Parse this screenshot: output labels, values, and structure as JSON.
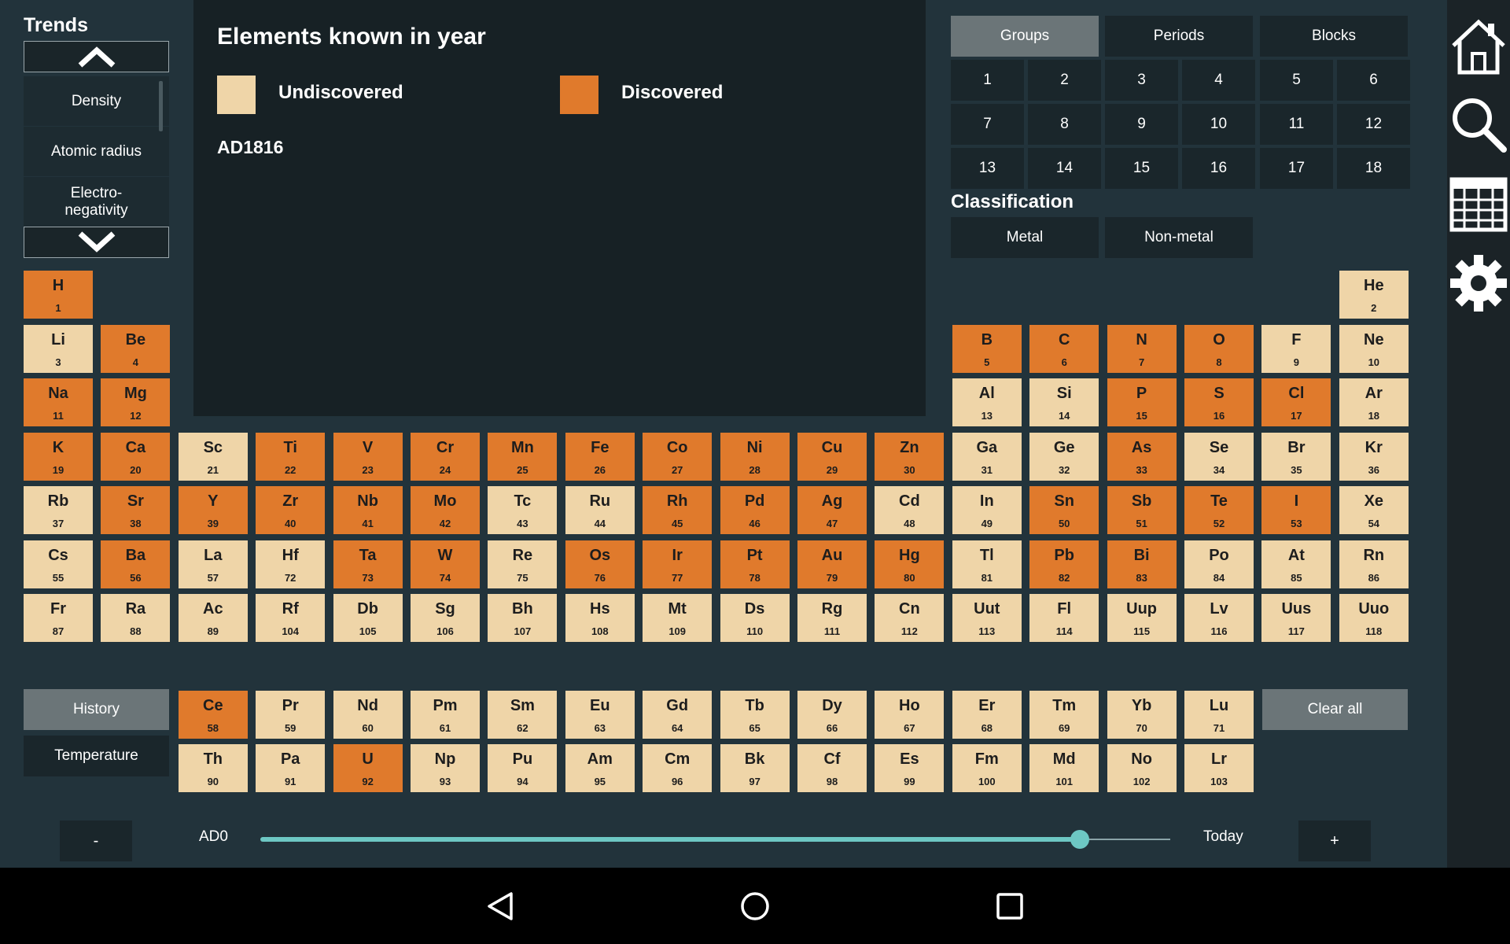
{
  "trends": {
    "title": "Trends",
    "items": [
      "Density",
      "Atomic radius",
      "Electro-\nnegativity"
    ]
  },
  "info": {
    "title": "Elements known in year",
    "legend_undiscovered": "Undiscovered",
    "legend_discovered": "Discovered",
    "year": "AD1816"
  },
  "tabs": [
    "Groups",
    "Periods",
    "Blocks"
  ],
  "groups": [
    "1",
    "2",
    "3",
    "4",
    "5",
    "6",
    "7",
    "8",
    "9",
    "10",
    "11",
    "12",
    "13",
    "14",
    "15",
    "16",
    "17",
    "18"
  ],
  "classification": {
    "title": "Classification",
    "metal": "Metal",
    "nonmetal": "Non-metal"
  },
  "modes": {
    "history": "History",
    "temperature": "Temperature"
  },
  "clear_all": "Clear all",
  "slider": {
    "minus": "-",
    "plus": "+",
    "start": "AD0",
    "end": "Today",
    "value_fraction": 0.88
  },
  "colors": {
    "undiscovered": "#efd5a8",
    "discovered": "#e07a2c",
    "accent": "#6dc7c3"
  },
  "elements": [
    {
      "s": "H",
      "n": 1,
      "r": 0,
      "c": 0,
      "d": 1
    },
    {
      "s": "He",
      "n": 2,
      "r": 0,
      "c": 17,
      "d": 0
    },
    {
      "s": "Li",
      "n": 3,
      "r": 1,
      "c": 0,
      "d": 0
    },
    {
      "s": "Be",
      "n": 4,
      "r": 1,
      "c": 1,
      "d": 1
    },
    {
      "s": "B",
      "n": 5,
      "r": 1,
      "c": 12,
      "d": 1
    },
    {
      "s": "C",
      "n": 6,
      "r": 1,
      "c": 13,
      "d": 1
    },
    {
      "s": "N",
      "n": 7,
      "r": 1,
      "c": 14,
      "d": 1
    },
    {
      "s": "O",
      "n": 8,
      "r": 1,
      "c": 15,
      "d": 1
    },
    {
      "s": "F",
      "n": 9,
      "r": 1,
      "c": 16,
      "d": 0
    },
    {
      "s": "Ne",
      "n": 10,
      "r": 1,
      "c": 17,
      "d": 0
    },
    {
      "s": "Na",
      "n": 11,
      "r": 2,
      "c": 0,
      "d": 1
    },
    {
      "s": "Mg",
      "n": 12,
      "r": 2,
      "c": 1,
      "d": 1
    },
    {
      "s": "Al",
      "n": 13,
      "r": 2,
      "c": 12,
      "d": 0
    },
    {
      "s": "Si",
      "n": 14,
      "r": 2,
      "c": 13,
      "d": 0
    },
    {
      "s": "P",
      "n": 15,
      "r": 2,
      "c": 14,
      "d": 1
    },
    {
      "s": "S",
      "n": 16,
      "r": 2,
      "c": 15,
      "d": 1
    },
    {
      "s": "Cl",
      "n": 17,
      "r": 2,
      "c": 16,
      "d": 1
    },
    {
      "s": "Ar",
      "n": 18,
      "r": 2,
      "c": 17,
      "d": 0
    },
    {
      "s": "K",
      "n": 19,
      "r": 3,
      "c": 0,
      "d": 1
    },
    {
      "s": "Ca",
      "n": 20,
      "r": 3,
      "c": 1,
      "d": 1
    },
    {
      "s": "Sc",
      "n": 21,
      "r": 3,
      "c": 2,
      "d": 0
    },
    {
      "s": "Ti",
      "n": 22,
      "r": 3,
      "c": 3,
      "d": 1
    },
    {
      "s": "V",
      "n": 23,
      "r": 3,
      "c": 4,
      "d": 1
    },
    {
      "s": "Cr",
      "n": 24,
      "r": 3,
      "c": 5,
      "d": 1
    },
    {
      "s": "Mn",
      "n": 25,
      "r": 3,
      "c": 6,
      "d": 1
    },
    {
      "s": "Fe",
      "n": 26,
      "r": 3,
      "c": 7,
      "d": 1
    },
    {
      "s": "Co",
      "n": 27,
      "r": 3,
      "c": 8,
      "d": 1
    },
    {
      "s": "Ni",
      "n": 28,
      "r": 3,
      "c": 9,
      "d": 1
    },
    {
      "s": "Cu",
      "n": 29,
      "r": 3,
      "c": 10,
      "d": 1
    },
    {
      "s": "Zn",
      "n": 30,
      "r": 3,
      "c": 11,
      "d": 1
    },
    {
      "s": "Ga",
      "n": 31,
      "r": 3,
      "c": 12,
      "d": 0
    },
    {
      "s": "Ge",
      "n": 32,
      "r": 3,
      "c": 13,
      "d": 0
    },
    {
      "s": "As",
      "n": 33,
      "r": 3,
      "c": 14,
      "d": 1
    },
    {
      "s": "Se",
      "n": 34,
      "r": 3,
      "c": 15,
      "d": 0
    },
    {
      "s": "Br",
      "n": 35,
      "r": 3,
      "c": 16,
      "d": 0
    },
    {
      "s": "Kr",
      "n": 36,
      "r": 3,
      "c": 17,
      "d": 0
    },
    {
      "s": "Rb",
      "n": 37,
      "r": 4,
      "c": 0,
      "d": 0
    },
    {
      "s": "Sr",
      "n": 38,
      "r": 4,
      "c": 1,
      "d": 1
    },
    {
      "s": "Y",
      "n": 39,
      "r": 4,
      "c": 2,
      "d": 1
    },
    {
      "s": "Zr",
      "n": 40,
      "r": 4,
      "c": 3,
      "d": 1
    },
    {
      "s": "Nb",
      "n": 41,
      "r": 4,
      "c": 4,
      "d": 1
    },
    {
      "s": "Mo",
      "n": 42,
      "r": 4,
      "c": 5,
      "d": 1
    },
    {
      "s": "Tc",
      "n": 43,
      "r": 4,
      "c": 6,
      "d": 0
    },
    {
      "s": "Ru",
      "n": 44,
      "r": 4,
      "c": 7,
      "d": 0
    },
    {
      "s": "Rh",
      "n": 45,
      "r": 4,
      "c": 8,
      "d": 1
    },
    {
      "s": "Pd",
      "n": 46,
      "r": 4,
      "c": 9,
      "d": 1
    },
    {
      "s": "Ag",
      "n": 47,
      "r": 4,
      "c": 10,
      "d": 1
    },
    {
      "s": "Cd",
      "n": 48,
      "r": 4,
      "c": 11,
      "d": 0
    },
    {
      "s": "In",
      "n": 49,
      "r": 4,
      "c": 12,
      "d": 0
    },
    {
      "s": "Sn",
      "n": 50,
      "r": 4,
      "c": 13,
      "d": 1
    },
    {
      "s": "Sb",
      "n": 51,
      "r": 4,
      "c": 14,
      "d": 1
    },
    {
      "s": "Te",
      "n": 52,
      "r": 4,
      "c": 15,
      "d": 1
    },
    {
      "s": "I",
      "n": 53,
      "r": 4,
      "c": 16,
      "d": 1
    },
    {
      "s": "Xe",
      "n": 54,
      "r": 4,
      "c": 17,
      "d": 0
    },
    {
      "s": "Cs",
      "n": 55,
      "r": 5,
      "c": 0,
      "d": 0
    },
    {
      "s": "Ba",
      "n": 56,
      "r": 5,
      "c": 1,
      "d": 1
    },
    {
      "s": "La",
      "n": 57,
      "r": 5,
      "c": 2,
      "d": 0
    },
    {
      "s": "Hf",
      "n": 72,
      "r": 5,
      "c": 3,
      "d": 0
    },
    {
      "s": "Ta",
      "n": 73,
      "r": 5,
      "c": 4,
      "d": 1
    },
    {
      "s": "W",
      "n": 74,
      "r": 5,
      "c": 5,
      "d": 1
    },
    {
      "s": "Re",
      "n": 75,
      "r": 5,
      "c": 6,
      "d": 0
    },
    {
      "s": "Os",
      "n": 76,
      "r": 5,
      "c": 7,
      "d": 1
    },
    {
      "s": "Ir",
      "n": 77,
      "r": 5,
      "c": 8,
      "d": 1
    },
    {
      "s": "Pt",
      "n": 78,
      "r": 5,
      "c": 9,
      "d": 1
    },
    {
      "s": "Au",
      "n": 79,
      "r": 5,
      "c": 10,
      "d": 1
    },
    {
      "s": "Hg",
      "n": 80,
      "r": 5,
      "c": 11,
      "d": 1
    },
    {
      "s": "Tl",
      "n": 81,
      "r": 5,
      "c": 12,
      "d": 0
    },
    {
      "s": "Pb",
      "n": 82,
      "r": 5,
      "c": 13,
      "d": 1
    },
    {
      "s": "Bi",
      "n": 83,
      "r": 5,
      "c": 14,
      "d": 1
    },
    {
      "s": "Po",
      "n": 84,
      "r": 5,
      "c": 15,
      "d": 0
    },
    {
      "s": "At",
      "n": 85,
      "r": 5,
      "c": 16,
      "d": 0
    },
    {
      "s": "Rn",
      "n": 86,
      "r": 5,
      "c": 17,
      "d": 0
    },
    {
      "s": "Fr",
      "n": 87,
      "r": 6,
      "c": 0,
      "d": 0
    },
    {
      "s": "Ra",
      "n": 88,
      "r": 6,
      "c": 1,
      "d": 0
    },
    {
      "s": "Ac",
      "n": 89,
      "r": 6,
      "c": 2,
      "d": 0
    },
    {
      "s": "Rf",
      "n": 104,
      "r": 6,
      "c": 3,
      "d": 0
    },
    {
      "s": "Db",
      "n": 105,
      "r": 6,
      "c": 4,
      "d": 0
    },
    {
      "s": "Sg",
      "n": 106,
      "r": 6,
      "c": 5,
      "d": 0
    },
    {
      "s": "Bh",
      "n": 107,
      "r": 6,
      "c": 6,
      "d": 0
    },
    {
      "s": "Hs",
      "n": 108,
      "r": 6,
      "c": 7,
      "d": 0
    },
    {
      "s": "Mt",
      "n": 109,
      "r": 6,
      "c": 8,
      "d": 0
    },
    {
      "s": "Ds",
      "n": 110,
      "r": 6,
      "c": 9,
      "d": 0
    },
    {
      "s": "Rg",
      "n": 111,
      "r": 6,
      "c": 10,
      "d": 0
    },
    {
      "s": "Cn",
      "n": 112,
      "r": 6,
      "c": 11,
      "d": 0
    },
    {
      "s": "Uut",
      "n": 113,
      "r": 6,
      "c": 12,
      "d": 0
    },
    {
      "s": "Fl",
      "n": 114,
      "r": 6,
      "c": 13,
      "d": 0
    },
    {
      "s": "Uup",
      "n": 115,
      "r": 6,
      "c": 14,
      "d": 0
    },
    {
      "s": "Lv",
      "n": 116,
      "r": 6,
      "c": 15,
      "d": 0
    },
    {
      "s": "Uus",
      "n": 117,
      "r": 6,
      "c": 16,
      "d": 0
    },
    {
      "s": "Uuo",
      "n": 118,
      "r": 6,
      "c": 17,
      "d": 0
    },
    {
      "s": "Ce",
      "n": 58,
      "r": 7,
      "c": 2,
      "d": 1
    },
    {
      "s": "Pr",
      "n": 59,
      "r": 7,
      "c": 3,
      "d": 0
    },
    {
      "s": "Nd",
      "n": 60,
      "r": 7,
      "c": 4,
      "d": 0
    },
    {
      "s": "Pm",
      "n": 61,
      "r": 7,
      "c": 5,
      "d": 0
    },
    {
      "s": "Sm",
      "n": 62,
      "r": 7,
      "c": 6,
      "d": 0
    },
    {
      "s": "Eu",
      "n": 63,
      "r": 7,
      "c": 7,
      "d": 0
    },
    {
      "s": "Gd",
      "n": 64,
      "r": 7,
      "c": 8,
      "d": 0
    },
    {
      "s": "Tb",
      "n": 65,
      "r": 7,
      "c": 9,
      "d": 0
    },
    {
      "s": "Dy",
      "n": 66,
      "r": 7,
      "c": 10,
      "d": 0
    },
    {
      "s": "Ho",
      "n": 67,
      "r": 7,
      "c": 11,
      "d": 0
    },
    {
      "s": "Er",
      "n": 68,
      "r": 7,
      "c": 12,
      "d": 0
    },
    {
      "s": "Tm",
      "n": 69,
      "r": 7,
      "c": 13,
      "d": 0
    },
    {
      "s": "Yb",
      "n": 70,
      "r": 7,
      "c": 14,
      "d": 0
    },
    {
      "s": "Lu",
      "n": 71,
      "r": 7,
      "c": 15,
      "d": 0
    },
    {
      "s": "Th",
      "n": 90,
      "r": 8,
      "c": 2,
      "d": 0
    },
    {
      "s": "Pa",
      "n": 91,
      "r": 8,
      "c": 3,
      "d": 0
    },
    {
      "s": "U",
      "n": 92,
      "r": 8,
      "c": 4,
      "d": 1
    },
    {
      "s": "Np",
      "n": 93,
      "r": 8,
      "c": 5,
      "d": 0
    },
    {
      "s": "Pu",
      "n": 94,
      "r": 8,
      "c": 6,
      "d": 0
    },
    {
      "s": "Am",
      "n": 95,
      "r": 8,
      "c": 7,
      "d": 0
    },
    {
      "s": "Cm",
      "n": 96,
      "r": 8,
      "c": 8,
      "d": 0
    },
    {
      "s": "Bk",
      "n": 97,
      "r": 8,
      "c": 9,
      "d": 0
    },
    {
      "s": "Cf",
      "n": 98,
      "r": 8,
      "c": 10,
      "d": 0
    },
    {
      "s": "Es",
      "n": 99,
      "r": 8,
      "c": 11,
      "d": 0
    },
    {
      "s": "Fm",
      "n": 100,
      "r": 8,
      "c": 12,
      "d": 0
    },
    {
      "s": "Md",
      "n": 101,
      "r": 8,
      "c": 13,
      "d": 0
    },
    {
      "s": "No",
      "n": 102,
      "r": 8,
      "c": 14,
      "d": 0
    },
    {
      "s": "Lr",
      "n": 103,
      "r": 8,
      "c": 15,
      "d": 0
    }
  ]
}
